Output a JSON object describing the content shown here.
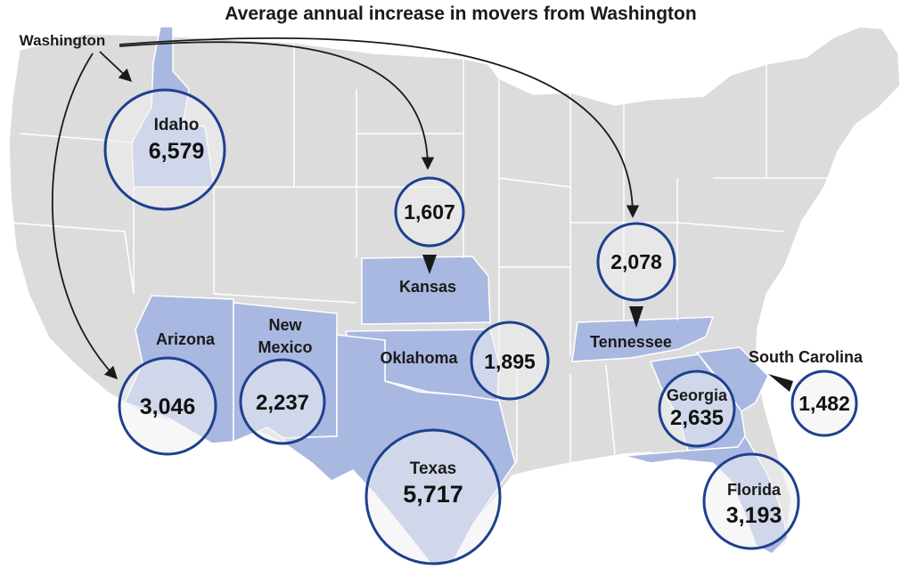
{
  "title": "Average annual increase in movers from Washington",
  "origin_label": "Washington",
  "colors": {
    "land": "#dcdcdc",
    "state_border": "#ffffff",
    "highlight_state": "#a9b8e0",
    "circle_fill": "#f0f0f2",
    "circle_stroke": "#1f3f8f",
    "arrow": "#1a1a1a"
  },
  "destinations": [
    {
      "state": "Idaho",
      "value": "6,579"
    },
    {
      "state": "Kansas",
      "value": "1,607"
    },
    {
      "state": "Tennessee",
      "value": "2,078"
    },
    {
      "state": "Arizona",
      "value": "3,046"
    },
    {
      "state": "New Mexico",
      "value": "2,237"
    },
    {
      "state": "Oklahoma",
      "value": "1,895"
    },
    {
      "state": "Texas",
      "value": "5,717"
    },
    {
      "state": "Georgia",
      "value": "2,635"
    },
    {
      "state": "South Carolina",
      "value": "1,482"
    },
    {
      "state": "Florida",
      "value": "3,193"
    }
  ]
}
